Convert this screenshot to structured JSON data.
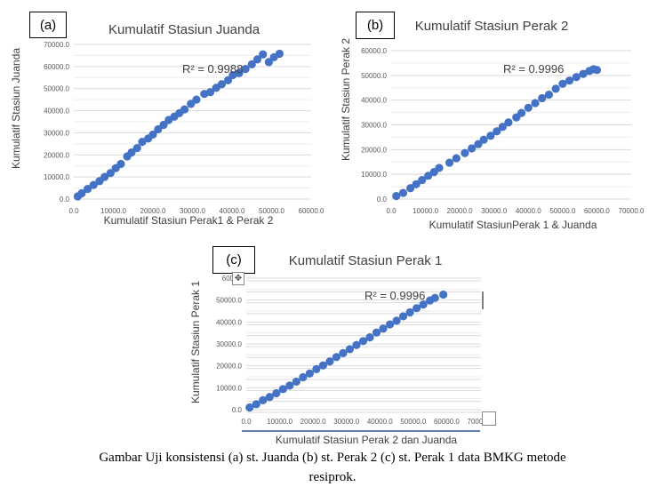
{
  "figure": {
    "caption_line1": "Gambar Uji konsistensi (a) st. Juanda (b) st. Perak 2 (c) st. Perak 1 data BMKG metode",
    "caption_line2": "resiprok."
  },
  "chart_data": [
    {
      "type": "scatter",
      "panel": "(a)",
      "title": "Kumulatif Stasiun Juanda",
      "xlabel": "Kumulatif Stasiun Perak1 & Perak 2",
      "ylabel": "Kumulatif Stasiun Juanda",
      "annotation": "R² = 0.9988",
      "xlim": [
        0,
        60000
      ],
      "ylim": [
        0,
        70000
      ],
      "xticks": [
        "0.0",
        "10000.0",
        "20000.0",
        "30000.0",
        "40000.0",
        "50000.0",
        "60000.0"
      ],
      "yticks": [
        "0.0",
        "10000.0",
        "20000.0",
        "30000.0",
        "40000.0",
        "50000.0",
        "60000.0",
        "70000.0"
      ],
      "grid": "horizontal",
      "marker_color": "#4472C4",
      "x": [
        1000,
        2000,
        3500,
        5000,
        6500,
        7800,
        9300,
        10600,
        11900,
        13500,
        14600,
        16000,
        17300,
        18800,
        20000,
        21300,
        22700,
        24000,
        25400,
        26700,
        28000,
        29600,
        31000,
        33000,
        34500,
        36000,
        37400,
        39000,
        40200,
        41800,
        43400,
        45000,
        46400,
        47800,
        49300,
        50600,
        52000
      ],
      "y": [
        1200,
        2600,
        4600,
        6400,
        8100,
        10000,
        11800,
        14000,
        15900,
        19300,
        21100,
        23100,
        25900,
        27400,
        29200,
        31600,
        33600,
        35800,
        37300,
        38900,
        40600,
        43100,
        45000,
        47600,
        48400,
        50400,
        52000,
        53800,
        56100,
        57000,
        58900,
        61000,
        63200,
        65500,
        62000,
        64200,
        65800
      ]
    },
    {
      "type": "scatter",
      "panel": "(b)",
      "title": "Kumulatif Stasiun Perak 2",
      "xlabel": "Kumulatif StasiunPerak 1 & Juanda",
      "ylabel": "Kumulatif Stasiun Perak 2",
      "annotation": "R² = 0.9996",
      "xlim": [
        0,
        70000
      ],
      "ylim": [
        0,
        60000
      ],
      "xticks": [
        "0.0",
        "10000.0",
        "20000.0",
        "30000.0",
        "40000.0",
        "50000.0",
        "60000.0",
        "70000.0"
      ],
      "yticks": [
        "0.0",
        "10000.0",
        "20000.0",
        "30000.0",
        "40000.0",
        "50000.0",
        "60000.0"
      ],
      "grid": "horizontal",
      "marker_color": "#4472C4",
      "x": [
        1500,
        3500,
        5600,
        7300,
        9000,
        10800,
        12500,
        14000,
        17000,
        19000,
        21500,
        23500,
        25400,
        27000,
        29000,
        30800,
        32500,
        34200,
        36500,
        38000,
        40000,
        42000,
        44000,
        46000,
        48000,
        50000,
        52000,
        54000,
        56000,
        57800,
        59000,
        60000
      ],
      "y": [
        1200,
        2500,
        4400,
        6000,
        7700,
        9400,
        10900,
        12600,
        14700,
        16500,
        18600,
        20500,
        22200,
        24000,
        25600,
        27400,
        29200,
        31000,
        33000,
        34800,
        36900,
        38800,
        40800,
        42200,
        44600,
        46600,
        47900,
        49300,
        50600,
        51800,
        52500,
        52200
      ]
    },
    {
      "type": "scatter",
      "panel": "(c)",
      "title": "Kumulatif Stasiun Perak 1",
      "xlabel": "Kumulatif Stasiun Perak 2 dan Juanda",
      "ylabel": "Kumulatif Stasiun Perak 1",
      "annotation": "R² = 0.9996",
      "xlim": [
        0,
        70000
      ],
      "ylim": [
        0,
        60000
      ],
      "xticks": [
        "0.0",
        "10000.0",
        "20000.0",
        "30000.0",
        "40000.0",
        "50000.0",
        "60000.0",
        "70000.0"
      ],
      "yticks": [
        "0.0",
        "10000.0",
        "20000.0",
        "30000.0",
        "40000.0",
        "50000.0",
        "60000"
      ],
      "grid": "horizontal",
      "marker_color": "#4472C4",
      "x": [
        1000,
        3000,
        5000,
        7000,
        9000,
        11000,
        13000,
        15000,
        17000,
        19000,
        21000,
        23000,
        25000,
        27000,
        29000,
        31000,
        33000,
        35000,
        37000,
        39000,
        41000,
        43000,
        45000,
        47000,
        49000,
        51000,
        53000,
        55000,
        56500,
        59000
      ],
      "y": [
        1000,
        2500,
        4300,
        5800,
        7500,
        9400,
        11000,
        12800,
        14800,
        16500,
        18500,
        20200,
        22000,
        24000,
        25800,
        27600,
        29500,
        31300,
        33000,
        35200,
        37000,
        38900,
        40600,
        42600,
        44400,
        46300,
        48000,
        49800,
        51000,
        52500
      ]
    }
  ]
}
